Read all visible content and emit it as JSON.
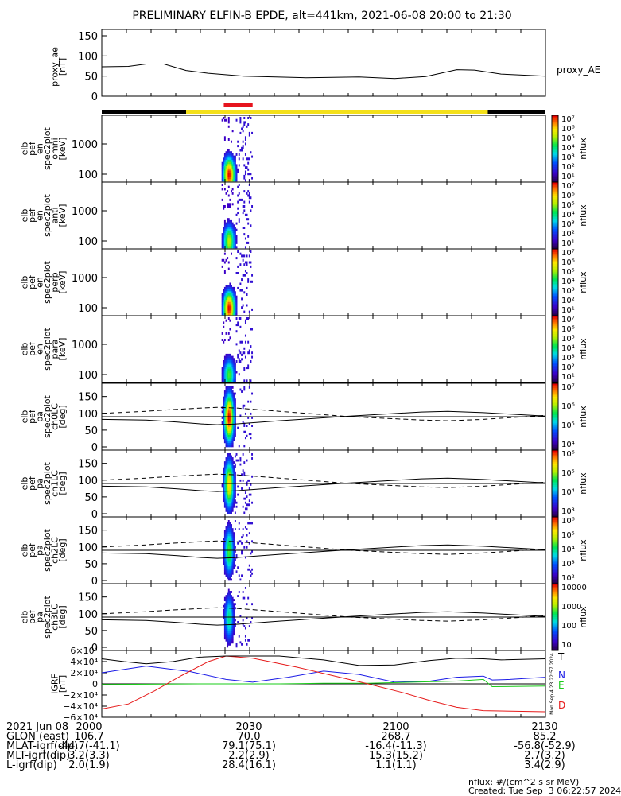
{
  "title": "PRELIMINARY ELFIN-B EPDE, alt=441km, 2021-06-08 20:00 to 21:30",
  "proxy_ae": {
    "ylabel_lines": [
      "proxy_ae",
      "[nT]"
    ],
    "legend": "proxy_AE",
    "ylim": [
      0,
      150
    ],
    "yticks": [
      "0",
      "50",
      "100",
      "150"
    ],
    "series": [
      [
        0,
        73
      ],
      [
        6,
        74
      ],
      [
        10,
        80
      ],
      [
        14,
        80
      ],
      [
        19,
        64
      ],
      [
        24,
        57
      ],
      [
        32,
        50
      ],
      [
        46,
        46
      ],
      [
        58,
        48
      ],
      [
        66,
        44
      ],
      [
        73,
        49
      ],
      [
        80,
        66
      ],
      [
        84,
        65
      ],
      [
        90,
        55
      ],
      [
        100,
        50
      ]
    ]
  },
  "status_bar": {
    "colors": {
      "black": "#000000",
      "yellow": "#f4e01a",
      "red": "#e6141e"
    }
  },
  "spectrograms": [
    {
      "ylabel_lines": [
        "elb",
        "pef",
        "en",
        "spec2plot",
        "omni",
        "[keV]"
      ],
      "yticks": [
        "100",
        "1000"
      ],
      "cbar_ticks": [
        "10⁷",
        "10⁶",
        "10⁵",
        "10⁴",
        "10³",
        "10²",
        "10¹"
      ],
      "cbar_label": "nflux",
      "intensity": 1.0
    },
    {
      "ylabel_lines": [
        "elb",
        "pef",
        "en",
        "spec2plot",
        "anti",
        "[keV]"
      ],
      "yticks": [
        "100",
        "1000"
      ],
      "cbar_ticks": [
        "10⁷",
        "10⁶",
        "10⁵",
        "10⁴",
        "10³",
        "10²",
        "10¹"
      ],
      "cbar_label": "nflux",
      "intensity": 0.7
    },
    {
      "ylabel_lines": [
        "elb",
        "pef",
        "en",
        "spec2plot",
        "perp",
        "[keV]"
      ],
      "yticks": [
        "100",
        "1000"
      ],
      "cbar_ticks": [
        "10⁷",
        "10⁶",
        "10⁵",
        "10⁴",
        "10³",
        "10²",
        "10¹"
      ],
      "cbar_label": "nflux",
      "intensity": 1.0
    },
    {
      "ylabel_lines": [
        "elb",
        "pef",
        "en",
        "spec2plot",
        "para",
        "[keV]"
      ],
      "yticks": [
        "100",
        "1000"
      ],
      "cbar_ticks": [
        "10⁷",
        "10⁶",
        "10⁵",
        "10⁴",
        "10³",
        "10²",
        "10¹"
      ],
      "cbar_label": "nflux",
      "intensity": 0.6
    }
  ],
  "pitch_panels": [
    {
      "ylabel_lines": [
        "elb",
        "pef",
        "pa",
        "spec2plot",
        "ch0LC",
        "[deg]"
      ],
      "yticks": [
        "0",
        "50",
        "100",
        "150"
      ],
      "cbar_ticks": [
        "10⁷",
        "10⁶",
        "10⁵",
        "10⁴"
      ],
      "cbar_label": "nflux",
      "intensity": 1.0
    },
    {
      "ylabel_lines": [
        "elb",
        "pef",
        "pa",
        "spec2plot",
        "ch1LC",
        "[deg]"
      ],
      "yticks": [
        "0",
        "50",
        "100",
        "150"
      ],
      "cbar_ticks": [
        "10⁶",
        "10⁵",
        "10⁴",
        "10³"
      ],
      "cbar_label": "nflux",
      "intensity": 0.8
    },
    {
      "ylabel_lines": [
        "elb",
        "pef",
        "pa",
        "spec2plot",
        "ch2LC",
        "[deg]"
      ],
      "yticks": [
        "0",
        "50",
        "100",
        "150"
      ],
      "cbar_ticks": [
        "10⁶",
        "10⁵",
        "10⁴",
        "10³",
        "10²"
      ],
      "cbar_label": "nflux",
      "intensity": 0.6
    },
    {
      "ylabel_lines": [
        "elb",
        "pef",
        "pa",
        "spec2plot",
        "ch3LC",
        "[deg]"
      ],
      "yticks": [
        "0",
        "50",
        "100",
        "150"
      ],
      "cbar_ticks": [
        "10000",
        "1000",
        "100",
        "10"
      ],
      "cbar_label": "nflux",
      "intensity": 0.5
    }
  ],
  "loss_cone": {
    "solid": [
      [
        0,
        82
      ],
      [
        10,
        80
      ],
      [
        17,
        74
      ],
      [
        23,
        68
      ],
      [
        26,
        66
      ],
      [
        30,
        68
      ],
      [
        40,
        78
      ],
      [
        56,
        92
      ],
      [
        72,
        104
      ],
      [
        78,
        106
      ],
      [
        86,
        102
      ],
      [
        100,
        92
      ]
    ],
    "dashed": [
      [
        0,
        100
      ],
      [
        10,
        106
      ],
      [
        17,
        112
      ],
      [
        23,
        116
      ],
      [
        26,
        118
      ],
      [
        30,
        116
      ],
      [
        40,
        106
      ],
      [
        56,
        90
      ],
      [
        72,
        80
      ],
      [
        78,
        78
      ],
      [
        86,
        82
      ],
      [
        100,
        94
      ]
    ]
  },
  "igrf": {
    "ylabel_lines": [
      "IGRF",
      "[nT]"
    ],
    "yticks": [
      "6×10⁴",
      "4×10⁴",
      "2×10⁴",
      "0",
      "−2×10⁴",
      "−4×10⁴",
      "−6×10⁴"
    ],
    "ylim": [
      -60000,
      60000
    ],
    "labels": {
      "T": "T",
      "N": "N",
      "E": "E",
      "D": "D"
    },
    "colors": {
      "T": "#000000",
      "N": "#1a1ae6",
      "E": "#1acc1a",
      "D": "#e61a1a"
    },
    "side_text": "Mon Sep  4 23:22:57 2024",
    "T": [
      [
        0,
        45000
      ],
      [
        5,
        40000
      ],
      [
        10,
        36000
      ],
      [
        16,
        40000
      ],
      [
        22,
        48000
      ],
      [
        28,
        50000
      ],
      [
        40,
        50000
      ],
      [
        50,
        43000
      ],
      [
        58,
        33000
      ],
      [
        66,
        34000
      ],
      [
        74,
        42000
      ],
      [
        80,
        46000
      ],
      [
        86,
        45000
      ],
      [
        90,
        43000
      ],
      [
        100,
        45000
      ]
    ],
    "N": [
      [
        0,
        20000
      ],
      [
        10,
        32000
      ],
      [
        20,
        22000
      ],
      [
        28,
        8000
      ],
      [
        34,
        3000
      ],
      [
        42,
        12000
      ],
      [
        50,
        23000
      ],
      [
        58,
        17000
      ],
      [
        66,
        3000
      ],
      [
        74,
        5000
      ],
      [
        80,
        12000
      ],
      [
        86,
        14000
      ],
      [
        88,
        7000
      ],
      [
        92,
        8000
      ],
      [
        100,
        12000
      ]
    ],
    "E": [
      [
        0,
        -1000
      ],
      [
        22,
        0
      ],
      [
        40,
        0
      ],
      [
        50,
        1000
      ],
      [
        60,
        1000
      ],
      [
        70,
        3000
      ],
      [
        80,
        5000
      ],
      [
        86,
        8000
      ],
      [
        88,
        -5000
      ],
      [
        100,
        -4000
      ]
    ],
    "D": [
      [
        0,
        -45000
      ],
      [
        6,
        -36000
      ],
      [
        12,
        -12000
      ],
      [
        18,
        15000
      ],
      [
        24,
        40000
      ],
      [
        28,
        50000
      ],
      [
        34,
        46000
      ],
      [
        44,
        30000
      ],
      [
        52,
        15000
      ],
      [
        60,
        0
      ],
      [
        68,
        -16000
      ],
      [
        74,
        -30000
      ],
      [
        80,
        -42000
      ],
      [
        86,
        -48000
      ],
      [
        100,
        -50000
      ]
    ]
  },
  "xaxis": {
    "ticks": [
      "2000",
      "2030",
      "2100",
      "2130"
    ],
    "rows": [
      {
        "label": "2021 Jun 08",
        "values": [
          "2000",
          "2030",
          "2100",
          "2130"
        ]
      },
      {
        "label": "GLON (east)",
        "values": [
          "106.7",
          "70.0",
          "268.7",
          "85.2"
        ]
      },
      {
        "label": "MLAT-igrf(dip)",
        "values": [
          "-44.7(-41.1)",
          "79.1(75.1)",
          "-16.4(-11.3)",
          "-56.8(-52.9)"
        ]
      },
      {
        "label": "MLT-igrf(dip)",
        "values": [
          "3.2(3.3)",
          "2.2(2.9)",
          "15.3(15.2)",
          "2.7(3.2)"
        ]
      },
      {
        "label": "L-igrf(dip)",
        "values": [
          "2.0(1.9)",
          "28.4(16.1)",
          "1.1(1.1)",
          "3.4(2.9)"
        ]
      }
    ]
  },
  "footer": {
    "units": "nflux: #/(cm^2 s sr MeV)",
    "created": "Created: Tue Sep  3 06:22:57 2024"
  }
}
